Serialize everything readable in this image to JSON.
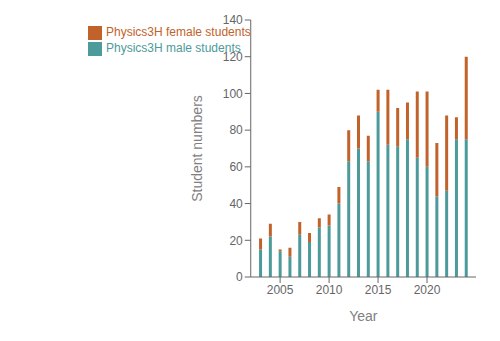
{
  "chart_data": {
    "type": "bar",
    "stacked": true,
    "x": [
      2003,
      2004,
      2005,
      2006,
      2007,
      2008,
      2009,
      2010,
      2011,
      2012,
      2013,
      2014,
      2015,
      2016,
      2017,
      2018,
      2019,
      2020,
      2021,
      2022,
      2023,
      2024
    ],
    "series": [
      {
        "name": "Physics3H male students",
        "color": "#4d9a9a",
        "values": [
          15,
          22,
          14,
          11,
          23,
          19,
          27,
          28,
          40,
          63,
          70,
          63,
          90,
          72,
          71,
          75,
          65,
          60,
          44,
          47,
          75,
          75
        ]
      },
      {
        "name": "Physics3H female students",
        "color": "#c1622b",
        "values": [
          6,
          7,
          1,
          5,
          7,
          5,
          5,
          6,
          9,
          17,
          18,
          14,
          12,
          30,
          21,
          20,
          36,
          41,
          29,
          41,
          12,
          45
        ]
      }
    ],
    "xlabel": "Year",
    "ylabel": "Student numbers",
    "xlim": [
      2002,
      2025
    ],
    "xticks": [
      2005,
      2010,
      2015,
      2020
    ],
    "ylim": [
      0,
      140
    ],
    "yticks": [
      0,
      20,
      40,
      60,
      80,
      100,
      120,
      140
    ],
    "grid": false,
    "legend": "upper left"
  }
}
